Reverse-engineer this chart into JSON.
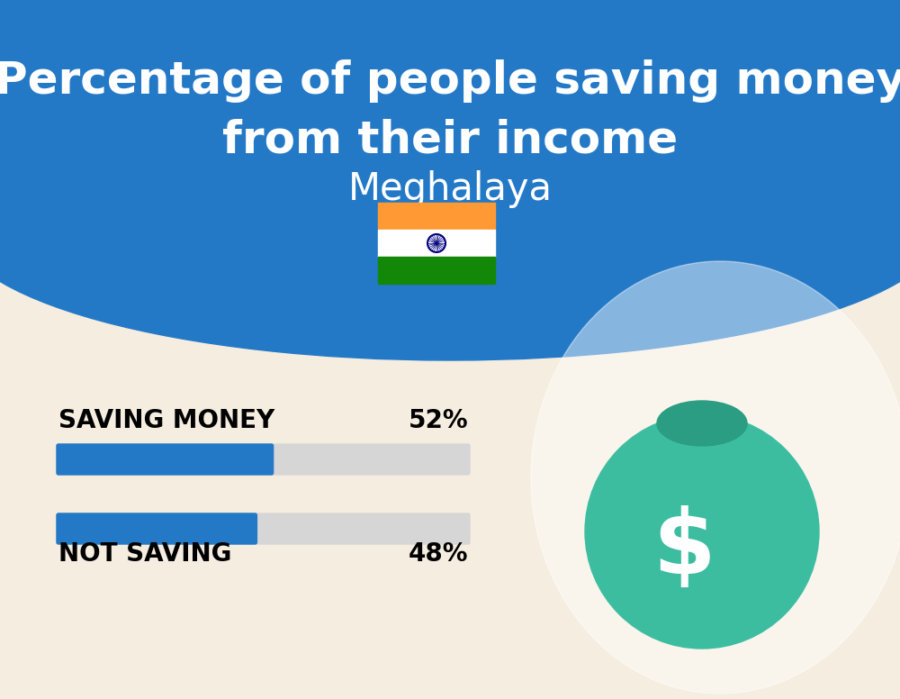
{
  "title_line1": "Percentage of people saving money",
  "title_line2": "from their income",
  "subtitle": "Meghalaya",
  "background_color": "#F5EDE0",
  "header_color": "#2479C7",
  "bar_color": "#2479C7",
  "bar_bg_color": "#D6D6D6",
  "text_color": "#000000",
  "title_color": "#FFFFFF",
  "categories": [
    "SAVING MONEY",
    "NOT SAVING"
  ],
  "values": [
    52,
    48
  ],
  "bar_max": 100,
  "label_fontsize": 20,
  "value_fontsize": 20,
  "title_fontsize": 36,
  "subtitle_fontsize": 30,
  "flag_fontsize": 44,
  "fig_width": 10.0,
  "fig_height": 7.76,
  "dpi": 100
}
